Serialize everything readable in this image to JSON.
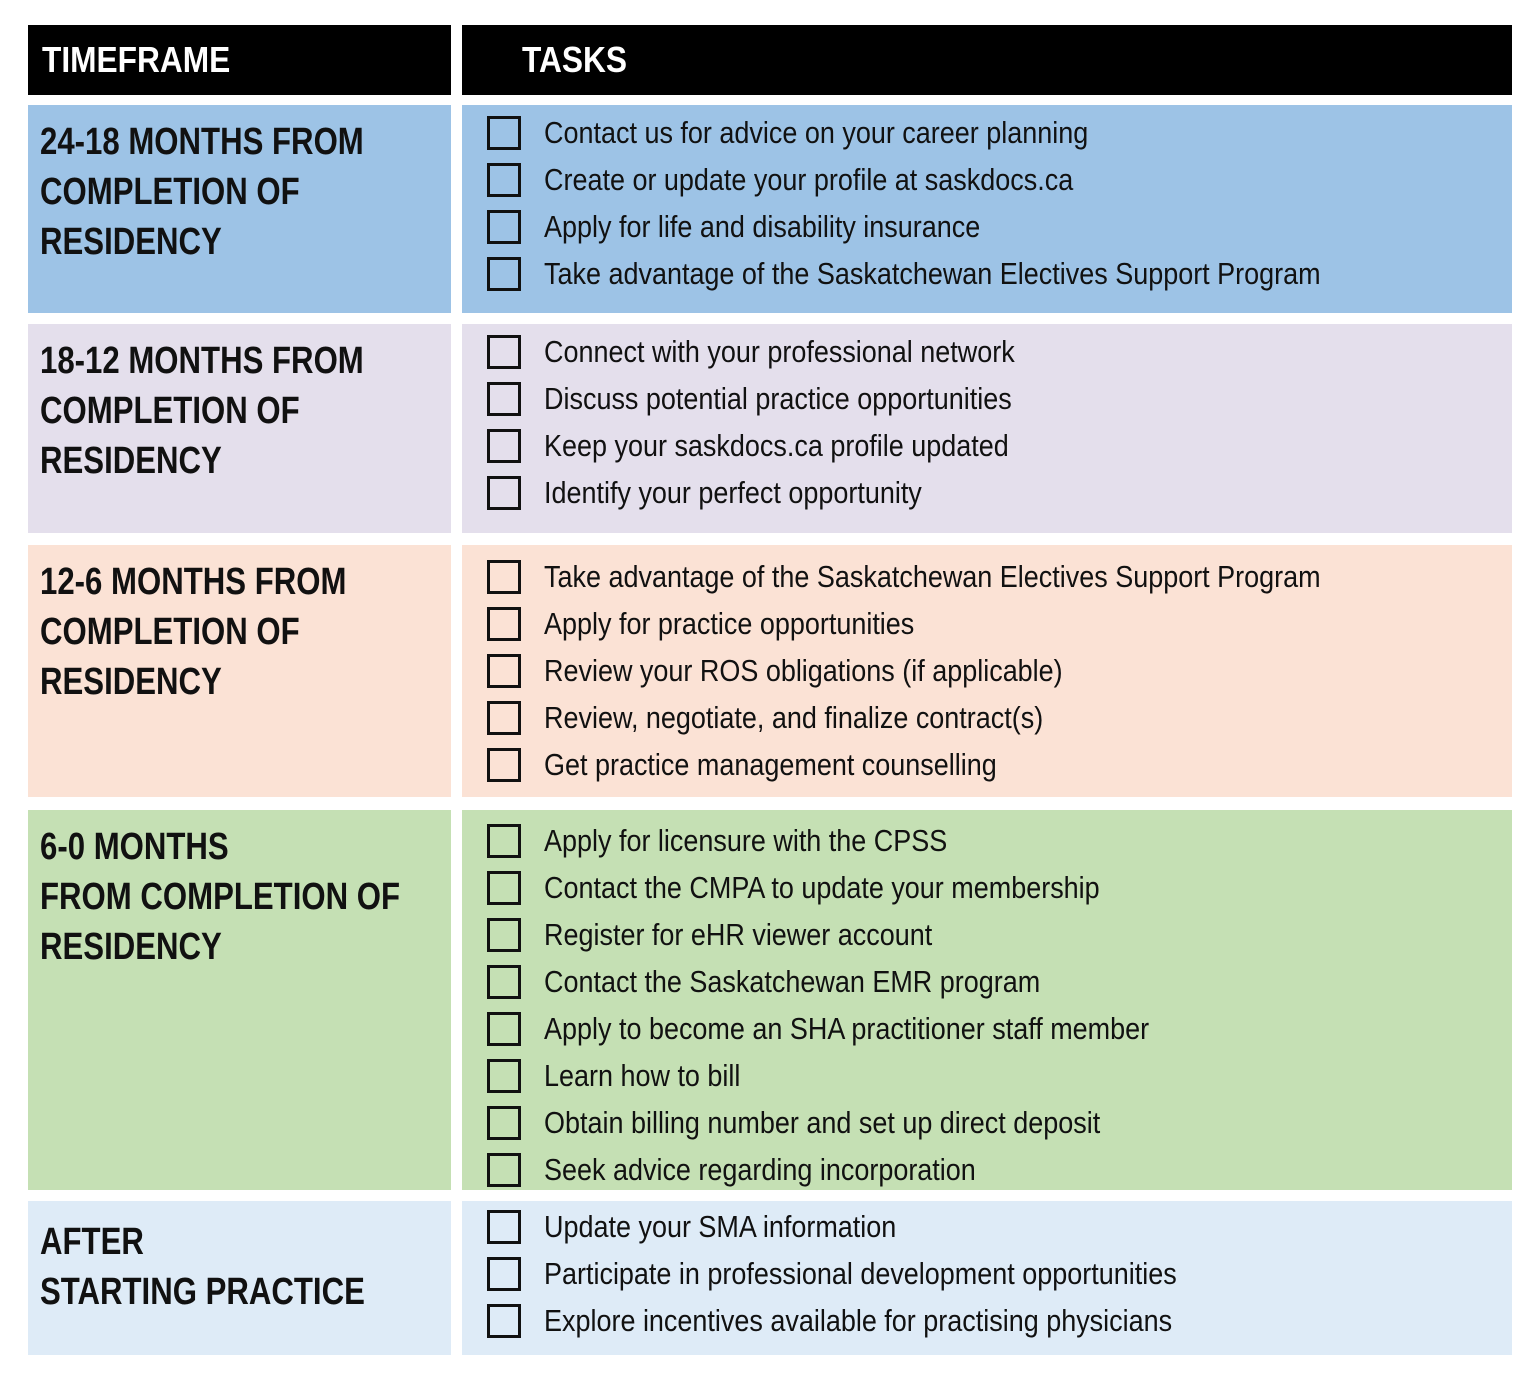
{
  "header": {
    "timeframe": "TIMEFRAME",
    "tasks": "TASKS"
  },
  "rows": [
    {
      "timeframe": [
        "24-18 MONTHS FROM",
        "COMPLETION OF",
        "RESIDENCY"
      ],
      "tasks": [
        "Contact us for advice on your career planning",
        "Create or update your profile at saskdocs.ca",
        "Apply for life and disability insurance",
        "Take advantage of the Saskatchewan Electives Support Program"
      ]
    },
    {
      "timeframe": [
        "18-12 MONTHS FROM",
        "COMPLETION OF",
        "RESIDENCY"
      ],
      "tasks": [
        "Connect with your professional network",
        "Discuss potential practice opportunities",
        "Keep your saskdocs.ca profile updated",
        "Identify your perfect opportunity"
      ]
    },
    {
      "timeframe": [
        "12-6 MONTHS FROM",
        "COMPLETION OF",
        "RESIDENCY"
      ],
      "tasks": [
        "Take advantage of the Saskatchewan Electives Support Program",
        "Apply for practice opportunities",
        "Review your ROS obligations (if applicable)",
        "Review, negotiate, and finalize contract(s)",
        "Get practice management counselling"
      ]
    },
    {
      "timeframe": [
        "6-0 MONTHS",
        "FROM COMPLETION OF",
        "RESIDENCY"
      ],
      "tasks": [
        "Apply for licensure with the CPSS",
        "Contact the CMPA to update your membership",
        "Register for eHR viewer account",
        "Contact the Saskatchewan EMR program",
        "Apply to become an SHA practitioner staff member",
        "Learn how to bill",
        "Obtain billing number and set up direct deposit",
        "Seek advice regarding incorporation"
      ]
    },
    {
      "timeframe": [
        "AFTER",
        "STARTING PRACTICE"
      ],
      "tasks": [
        "Update your SMA information",
        "Participate in professional development opportunities",
        "Explore incentives available for practising physicians"
      ]
    }
  ]
}
